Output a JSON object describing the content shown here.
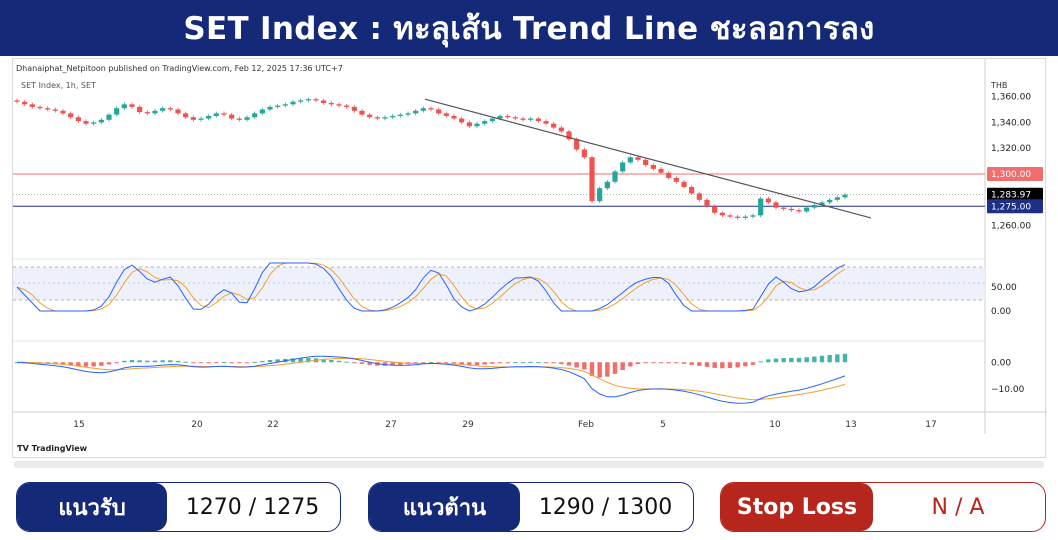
{
  "title": "SET Index : ทะลุเส้น Trend Line ชะลอการลง",
  "chart": {
    "publisher_line": "Dhanaiphat_Netpitoon published on TradingView.com, Feb 12, 2025 17:36 UTC+7",
    "symbol_line": "SET Index, 1h, SET",
    "currency": "THB",
    "tradingview_logo": "TradingView",
    "colors": {
      "up": "#26a69a",
      "down": "#ef5350",
      "stoch_k": "#2962ff",
      "stoch_d": "#f4a02f",
      "trendline": "#555555",
      "resistance_line": "#f26d6d",
      "support_line": "#1e2f86",
      "last_price_bg": "#000000"
    }
  },
  "chart_data": {
    "type": "candlestick",
    "price_axis": {
      "ticks": [
        "1,360.00",
        "1,340.00",
        "1,320.00",
        "1,300.00",
        "1,283.97",
        "1,275.00",
        "1,260.00"
      ],
      "ylim": [
        1252,
        1362
      ]
    },
    "horizontal_levels": [
      {
        "value": 1300,
        "label": "1,300.00"
      },
      {
        "value": 1275,
        "label": "1,275.00"
      }
    ],
    "last_price": {
      "value": 1283.97,
      "label": "1,283.97"
    },
    "trendline": {
      "from": [
        "Jan 28",
        1358
      ],
      "to": [
        "Feb 13",
        1266
      ]
    },
    "x_ticks": [
      "15",
      "20",
      "22",
      "27",
      "29",
      "Feb",
      "5",
      "10",
      "13",
      "17"
    ],
    "closes": [
      1356,
      1354,
      1352,
      1351,
      1350,
      1349,
      1347,
      1344,
      1341,
      1339,
      1340,
      1342,
      1346,
      1351,
      1354,
      1352,
      1348,
      1347,
      1349,
      1351,
      1350,
      1347,
      1344,
      1342,
      1343,
      1345,
      1347,
      1346,
      1343,
      1342,
      1344,
      1347,
      1350,
      1352,
      1353,
      1354,
      1356,
      1357,
      1358,
      1357,
      1355,
      1354,
      1353,
      1352,
      1349,
      1346,
      1344,
      1343,
      1344,
      1345,
      1346,
      1347,
      1349,
      1351,
      1350,
      1347,
      1345,
      1343,
      1340,
      1337,
      1339,
      1341,
      1343,
      1345,
      1344,
      1343,
      1342,
      1343,
      1341,
      1339,
      1336,
      1333,
      1327,
      1319,
      1313,
      1279,
      1289,
      1294,
      1302,
      1309,
      1313,
      1311,
      1307,
      1304,
      1301,
      1297,
      1294,
      1290,
      1285,
      1280,
      1275,
      1270,
      1268,
      1267,
      1266,
      1267,
      1268,
      1281,
      1278,
      1274,
      1273,
      1272,
      1271,
      1274,
      1276,
      1278,
      1280,
      1282,
      1284
    ],
    "stochastic": {
      "levels": [
        "50.00",
        "0.00"
      ],
      "overbought": 80,
      "oversold": 20
    },
    "macd": {
      "levels": [
        "0.00",
        "−10.00"
      ],
      "ylim": [
        -15,
        5
      ]
    }
  },
  "levels_panel": {
    "support": {
      "label": "แนวรับ",
      "value": "1270 / 1275"
    },
    "resistance": {
      "label": "แนวต้าน",
      "value": "1290 / 1300"
    },
    "stop_loss": {
      "label": "Stop Loss",
      "value": "N / A"
    }
  }
}
